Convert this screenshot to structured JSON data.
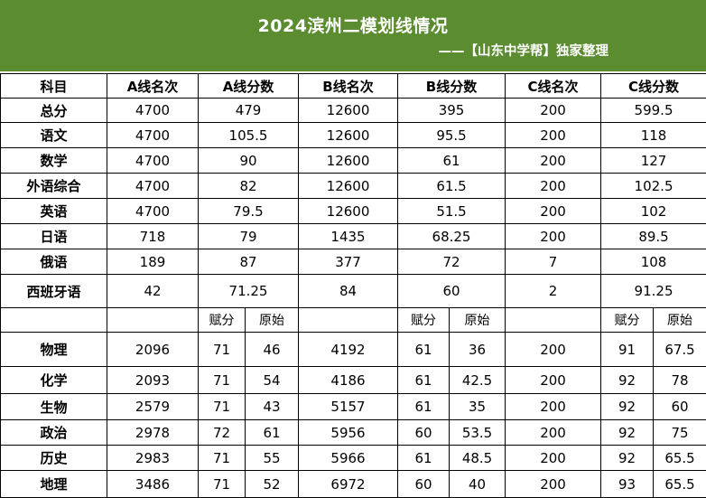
{
  "header": {
    "title": "2024滨州二模划线情况",
    "subtitle": "——【山东中学帮】独家整理",
    "bg_color": "#5b8c2f"
  },
  "columns": [
    "科目",
    "A线名次",
    "A线分数",
    "B线名次",
    "B线分数",
    "C线名次",
    "C线分数"
  ],
  "rows": [
    {
      "subject": "总分",
      "a_rank": "4700",
      "a_score": "479",
      "b_rank": "12600",
      "b_score": "395",
      "c_rank": "200",
      "c_score": "599.5"
    },
    {
      "subject": "语文",
      "a_rank": "4700",
      "a_score": "105.5",
      "b_rank": "12600",
      "b_score": "95.5",
      "c_rank": "200",
      "c_score": "118"
    },
    {
      "subject": "数学",
      "a_rank": "4700",
      "a_score": "90",
      "b_rank": "12600",
      "b_score": "61",
      "c_rank": "200",
      "c_score": "127"
    },
    {
      "subject": "外语综合",
      "a_rank": "4700",
      "a_score": "82",
      "b_rank": "12600",
      "b_score": "61.5",
      "c_rank": "200",
      "c_score": "102.5"
    },
    {
      "subject": "英语",
      "a_rank": "4700",
      "a_score": "79.5",
      "b_rank": "12600",
      "b_score": "51.5",
      "c_rank": "200",
      "c_score": "102"
    },
    {
      "subject": "日语",
      "a_rank": "718",
      "a_score": "79",
      "b_rank": "1435",
      "b_score": "68.25",
      "c_rank": "200",
      "c_score": "89.5"
    },
    {
      "subject": "俄语",
      "a_rank": "189",
      "a_score": "87",
      "b_rank": "377",
      "b_score": "72",
      "c_rank": "7",
      "c_score": "108"
    },
    {
      "subject": "西班牙语",
      "a_rank": "42",
      "a_score": "71.25",
      "b_rank": "84",
      "b_score": "60",
      "c_rank": "2",
      "c_score": "91.25"
    }
  ],
  "sub_labels": {
    "assigned": "赋分",
    "raw": "原始"
  },
  "elective_rows": [
    {
      "subject": "物理",
      "a_rank": "2096",
      "a_assigned": "71",
      "a_raw": "46",
      "b_rank": "4192",
      "b_assigned": "61",
      "b_raw": "36",
      "c_rank": "200",
      "c_assigned": "91",
      "c_raw": "67.5"
    },
    {
      "subject": "化学",
      "a_rank": "2093",
      "a_assigned": "71",
      "a_raw": "54",
      "b_rank": "4186",
      "b_assigned": "61",
      "b_raw": "42.5",
      "c_rank": "200",
      "c_assigned": "92",
      "c_raw": "78"
    },
    {
      "subject": "生物",
      "a_rank": "2579",
      "a_assigned": "71",
      "a_raw": "43",
      "b_rank": "5157",
      "b_assigned": "61",
      "b_raw": "35",
      "c_rank": "200",
      "c_assigned": "92",
      "c_raw": "60"
    },
    {
      "subject": "政治",
      "a_rank": "2978",
      "a_assigned": "72",
      "a_raw": "61",
      "b_rank": "5956",
      "b_assigned": "60",
      "b_raw": "53.5",
      "c_rank": "200",
      "c_assigned": "92",
      "c_raw": "75"
    },
    {
      "subject": "历史",
      "a_rank": "2983",
      "a_assigned": "71",
      "a_raw": "55",
      "b_rank": "5966",
      "b_assigned": "61",
      "b_raw": "48.5",
      "c_rank": "200",
      "c_assigned": "92",
      "c_raw": "65.5"
    },
    {
      "subject": "地理",
      "a_rank": "3486",
      "a_assigned": "71",
      "a_raw": "52",
      "b_rank": "6972",
      "b_assigned": "60",
      "b_raw": "40",
      "c_rank": "200",
      "c_assigned": "93",
      "c_raw": "65.5"
    }
  ]
}
